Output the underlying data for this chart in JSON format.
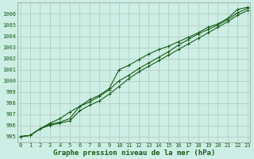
{
  "background_color": "#cceee4",
  "grid_color": "#b0c8c0",
  "line_color": "#1a5c1a",
  "xlabel": "Graphe pression niveau de la mer (hPa)",
  "ylim": [
    994.5,
    1007.0
  ],
  "xlim": [
    -0.3,
    23.3
  ],
  "yticks": [
    995,
    996,
    997,
    998,
    999,
    1000,
    1001,
    1002,
    1003,
    1004,
    1005,
    1006
  ],
  "xticks": [
    0,
    1,
    2,
    3,
    4,
    5,
    6,
    7,
    8,
    9,
    10,
    11,
    12,
    13,
    14,
    15,
    16,
    17,
    18,
    19,
    20,
    21,
    22,
    23
  ],
  "series1": [
    995.0,
    995.1,
    995.7,
    996.1,
    996.3,
    996.6,
    997.7,
    998.3,
    998.7,
    999.3,
    1001.0,
    1001.4,
    1001.9,
    1002.4,
    1002.8,
    1003.1,
    1003.5,
    1003.9,
    1004.3,
    1004.8,
    1005.1,
    1005.6,
    1006.4,
    1006.6
  ],
  "series2": [
    995.0,
    995.1,
    995.7,
    996.0,
    996.2,
    996.4,
    997.3,
    997.8,
    998.2,
    998.8,
    999.5,
    1000.2,
    1000.8,
    1001.3,
    1001.8,
    1002.3,
    1002.8,
    1003.3,
    1003.8,
    1004.3,
    1004.8,
    1005.3,
    1005.9,
    1006.3
  ],
  "series3": [
    995.0,
    995.1,
    995.7,
    996.2,
    996.6,
    997.2,
    997.7,
    998.1,
    998.6,
    999.2,
    1000.0,
    1000.5,
    1001.1,
    1001.6,
    1002.1,
    1002.6,
    1003.2,
    1003.7,
    1004.2,
    1004.6,
    1005.0,
    1005.5,
    1006.1,
    1006.5
  ],
  "marker": "+",
  "markersize": 3.5,
  "linewidth": 0.8,
  "xlabel_fontsize": 6.5,
  "tick_fontsize": 5.0,
  "title_color": "#1a5c1a"
}
